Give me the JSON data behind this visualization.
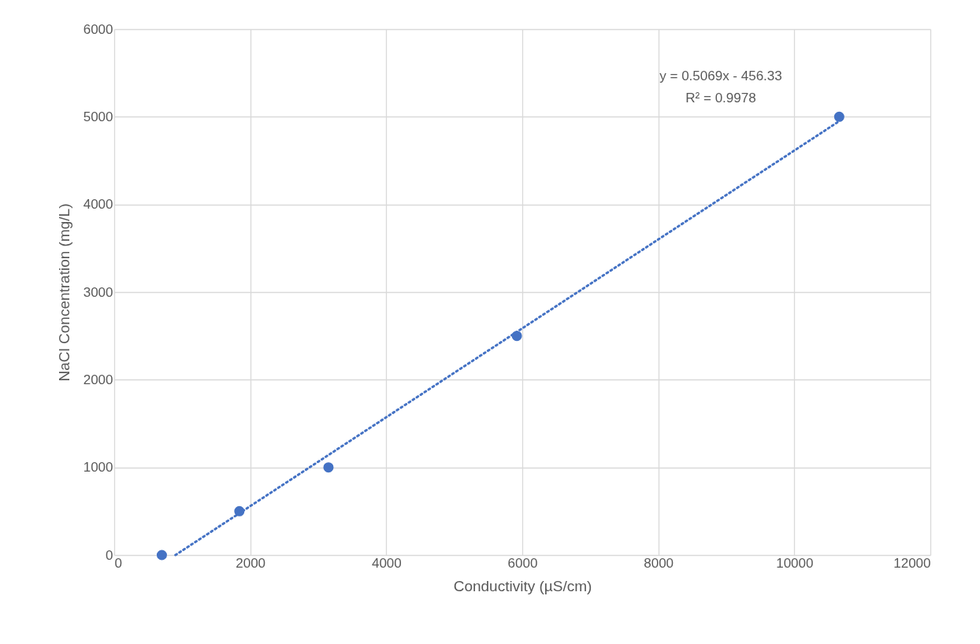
{
  "chart_data": {
    "type": "scatter",
    "xlabel": "Conductivity (µS/cm)",
    "ylabel": "NaCl Concentration (mg/L)",
    "xlim": [
      0,
      12000
    ],
    "xticks": [
      0,
      2000,
      4000,
      6000,
      8000,
      10000,
      12000
    ],
    "ylim": [
      0,
      6000
    ],
    "yticks": [
      0,
      1000,
      2000,
      3000,
      4000,
      5000,
      6000
    ],
    "grid": true,
    "series": [
      {
        "type": "scatter",
        "color": "#4472c4",
        "marker": "circle",
        "x": [
          700,
          1840,
          3150,
          5920,
          10660
        ],
        "values": [
          0,
          500,
          1000,
          2500,
          5000
        ]
      },
      {
        "type": "line",
        "color": "#4472c4",
        "marker": "none",
        "line_style": "dotted",
        "x": [
          900,
          10660
        ],
        "values": [
          0,
          4950
        ]
      }
    ],
    "annotations": [
      "y = 0.5069x - 456.33",
      "R² = 0.9978"
    ]
  }
}
